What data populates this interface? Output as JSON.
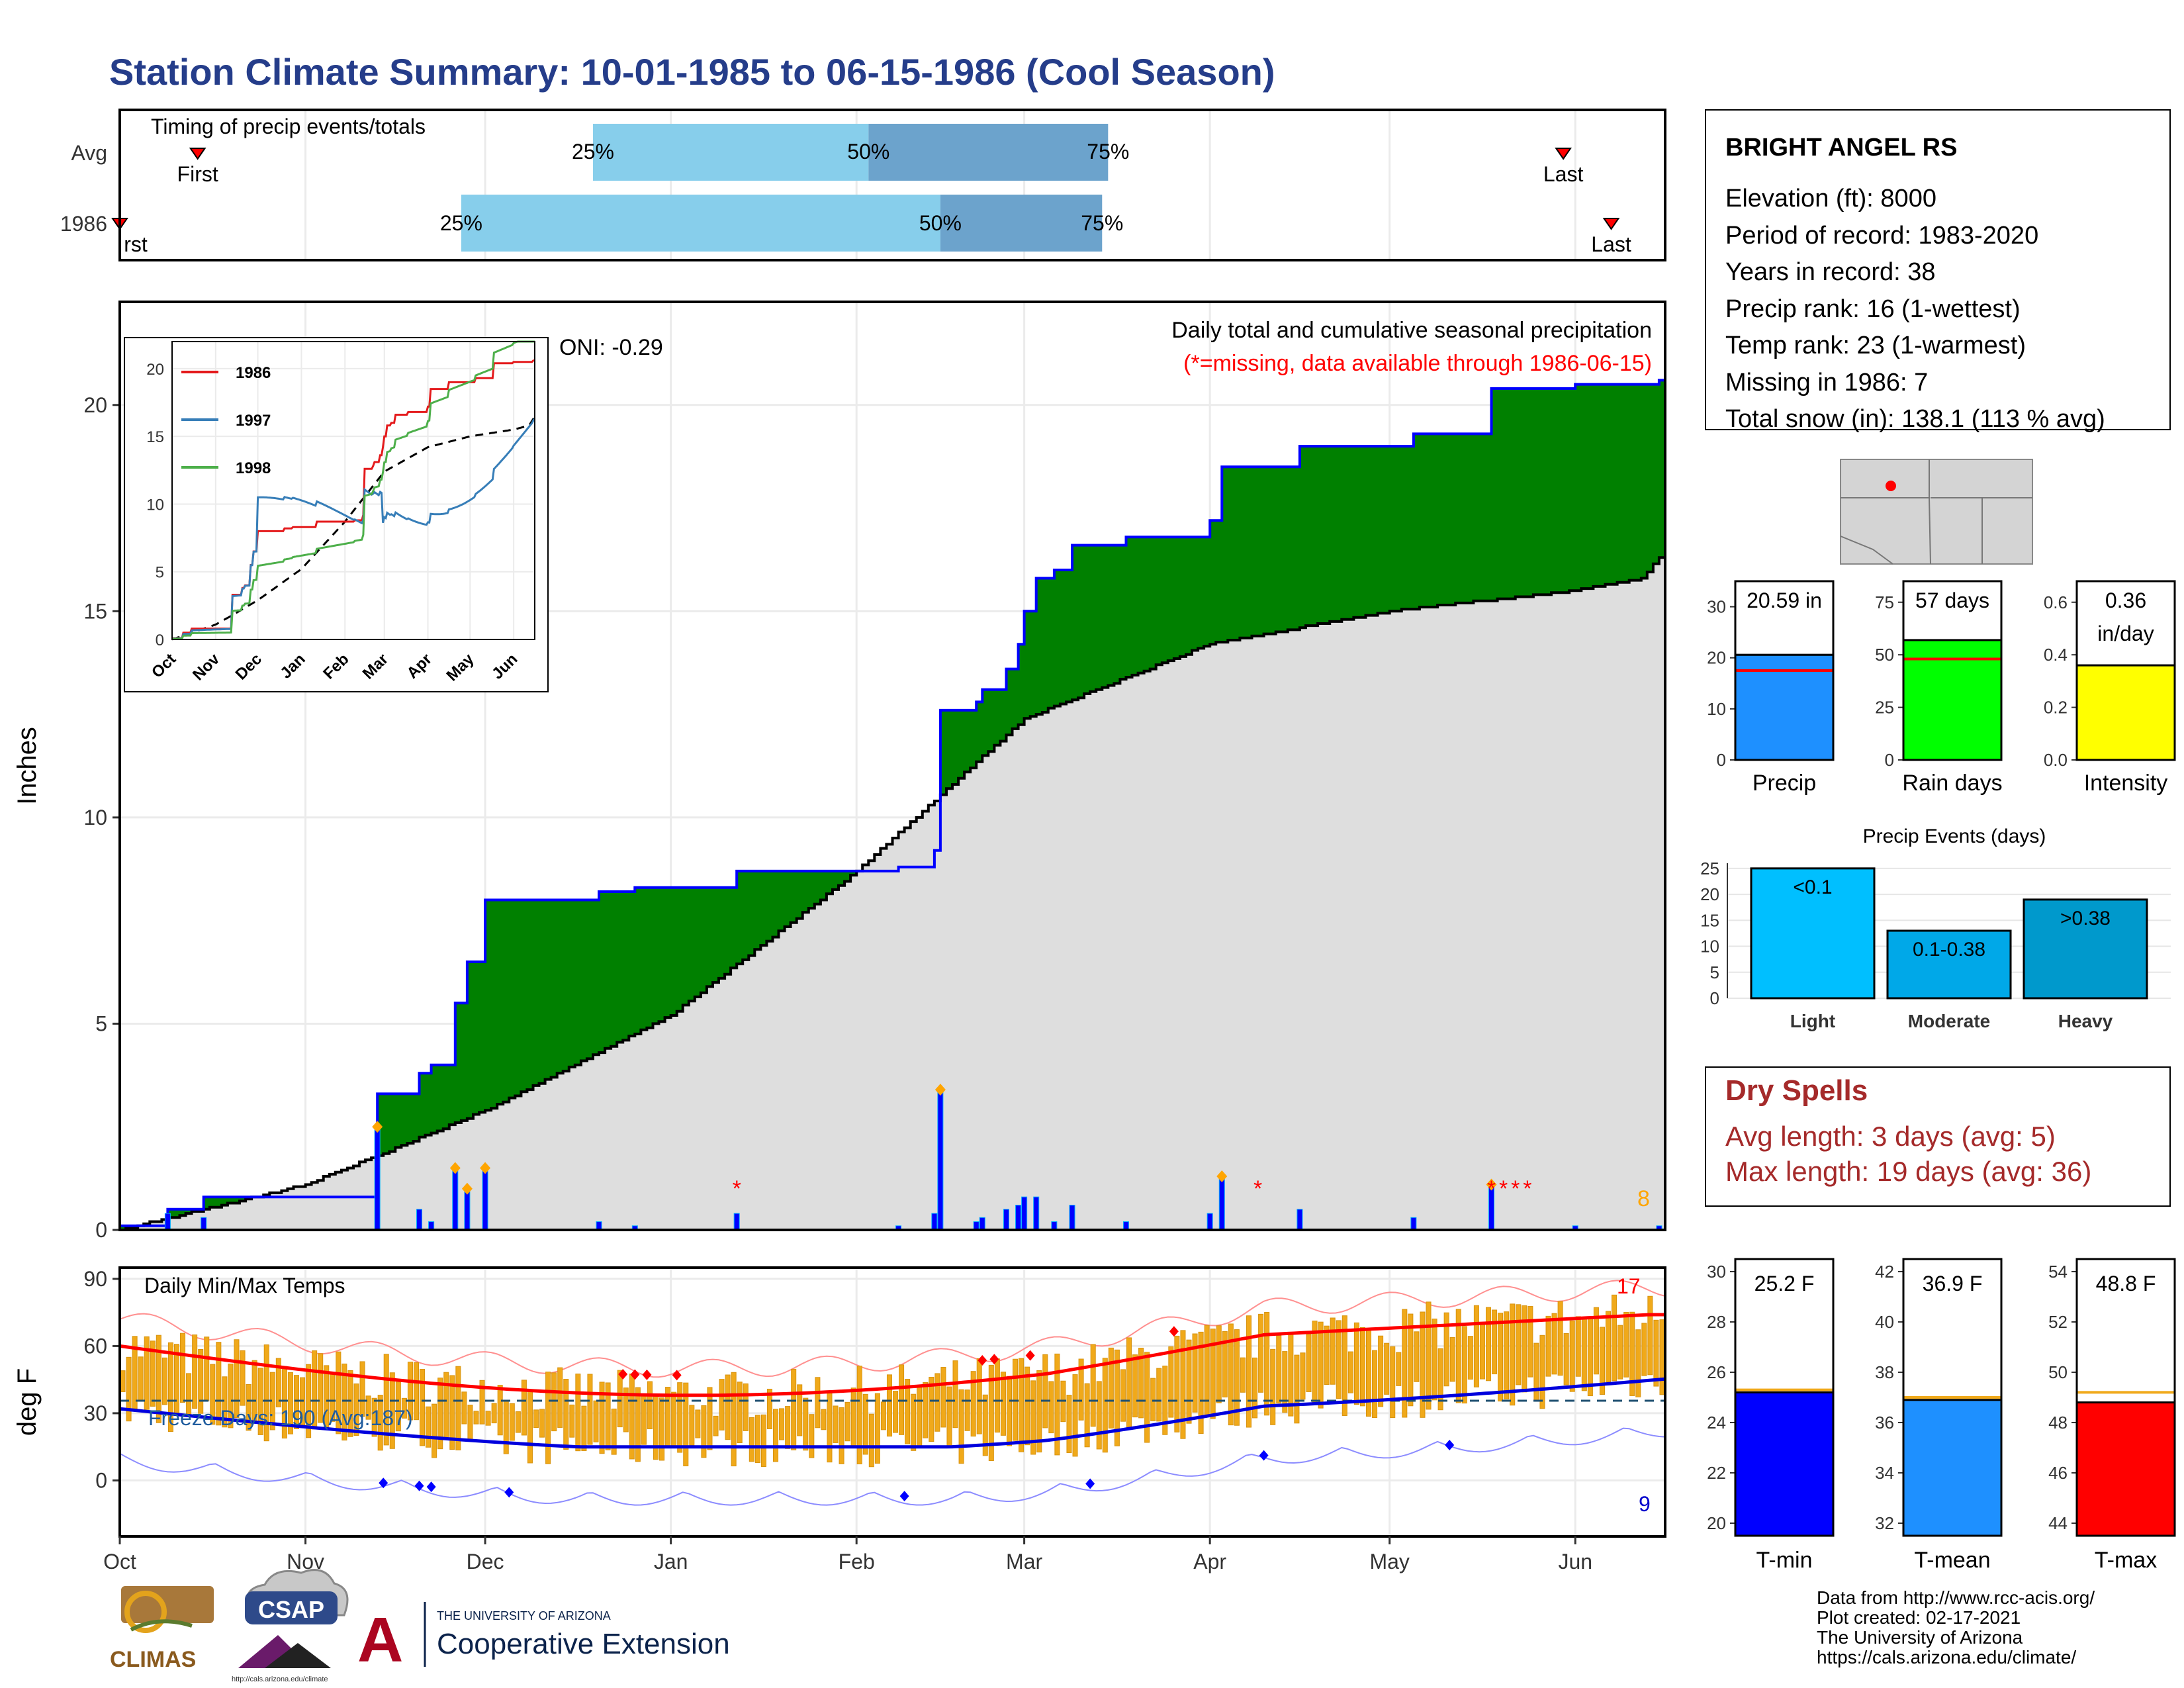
{
  "title": "Station Climate Summary: 10-01-1985 to 06-15-1986 (Cool Season)",
  "timing": {
    "label": "Timing of precip events/totals",
    "rows": [
      {
        "label": "Avg",
        "first_date": "1985-10-14",
        "last_date": "1986-05-30",
        "q25": "1985-12-19",
        "q50": "1986-02-03",
        "q75": "1986-03-15",
        "first_label": "First",
        "last_label": "Last"
      },
      {
        "label": "1986",
        "first_date": "1985-10-01",
        "last_date": "1986-06-07",
        "q25": "1985-11-27",
        "q50": "1986-02-15",
        "q75": "1986-03-14",
        "first_label": "rst",
        "last_label": "Last"
      }
    ],
    "pct_labels": [
      "25%",
      "50%",
      "75%"
    ]
  },
  "station": {
    "name": "BRIGHT ANGEL RS",
    "lines": [
      "Elevation (ft): 8000",
      "Period of record: 1983-2020",
      "Years in record: 38",
      "Precip rank: 16 (1-wettest)",
      "Temp rank: 23 (1-warmest)",
      "Missing in 1986: 7",
      "Total snow (in): 138.1 (113 % avg)"
    ]
  },
  "precip_panel": {
    "ylabel": "Inches",
    "annotation1": "Daily total and cumulative seasonal precipitation",
    "annotation2": "(*=missing, data available through 1986-06-15)",
    "oni": "ONI: -0.29",
    "count_label": "8",
    "yticks": [
      "0",
      "5",
      "10",
      "15",
      "20"
    ]
  },
  "temp_panel": {
    "ylabel": "deg F",
    "label": "Daily Min/Max Temps",
    "freeze": "Freeze Days: 190 (Avg:187)",
    "hi_count": "17",
    "lo_count": "9",
    "yticks": [
      "0",
      "30",
      "60",
      "90"
    ]
  },
  "month_labels": [
    "Oct",
    "Nov",
    "Dec",
    "Jan",
    "Feb",
    "Mar",
    "Apr",
    "May",
    "Jun"
  ],
  "inset_month_labels": [
    "Oct",
    "Nov",
    "Dec",
    "Jan",
    "Feb",
    "Mar",
    "Apr",
    "May",
    "Jun"
  ],
  "bar_values": {
    "precip": {
      "value_label": "20.59 in",
      "name": "Precip",
      "yticks": [
        "0",
        "10",
        "20",
        "30"
      ]
    },
    "rain": {
      "value_label": "57 days",
      "name": "Rain days",
      "yticks": [
        "0",
        "25",
        "50",
        "75"
      ]
    },
    "intensity": {
      "value_label": "0.36",
      "value_label2": "in/day",
      "name": "Intensity",
      "yticks": [
        "0.0",
        "0.2",
        "0.4",
        "0.6"
      ]
    }
  },
  "events": {
    "title": "Precip Events (days)",
    "yticks": [
      "0",
      "5",
      "10",
      "15",
      "20",
      "25"
    ]
  },
  "dry_spells": {
    "title": "Dry Spells",
    "avg": "Avg length: 3 days (avg: 5)",
    "max": "Max length: 19 days (avg: 36)"
  },
  "temp_bars": {
    "tmin": {
      "value_label": "25.2 F",
      "name": "T-min",
      "yticks": [
        "20",
        "22",
        "24",
        "26",
        "28",
        "30"
      ]
    },
    "tmean": {
      "value_label": "36.9 F",
      "name": "T-mean",
      "yticks": [
        "32",
        "34",
        "36",
        "38",
        "40",
        "42"
      ]
    },
    "tmax": {
      "value_label": "48.8 F",
      "name": "T-max",
      "yticks": [
        "44",
        "46",
        "48",
        "50",
        "52",
        "54"
      ]
    }
  },
  "logos": {
    "climas": "CLIMAS",
    "csap": "CSAP",
    "csap_url": "http://cals.arizona.edu/climate",
    "ua_small": "THE UNIVERSITY OF ARIZONA",
    "ua_big": "Cooperative Extension",
    "ua_letter": "A"
  },
  "credits": [
    "Data from http://www.rcc-acis.org/",
    "Plot created: 02-17-2021",
    "The University of Arizona",
    "https://cals.arizona.edu/climate/"
  ],
  "colors": {
    "title": "#253d8a",
    "green": "#008000",
    "brown": "#7f5200",
    "grey": "#dedede",
    "blue": "#0000ff",
    "orange": "#f0a91a",
    "red": "#ff0000",
    "q1": "#87ceeb",
    "q2": "#6ca3cc"
  },
  "chart_data": [
    {
      "type": "area",
      "title": "Daily total and cumulative seasonal precipitation",
      "ylabel": "Inches",
      "ylim": [
        0,
        22.5
      ],
      "series": [
        {
          "name": "1986",
          "x": [
            "1985-10-01",
            "1985-10-09",
            "1985-10-15",
            "1985-11-12",
            "1985-11-13",
            "1985-11-20",
            "1985-11-22",
            "1985-11-26",
            "1985-11-28",
            "1985-12-01",
            "1985-12-20",
            "1985-12-26",
            "1986-01-12",
            "1986-01-28",
            "1986-02-08",
            "1986-02-14",
            "1986-02-15",
            "1986-02-21",
            "1986-02-22",
            "1986-02-26",
            "1986-02-28",
            "1986-03-01",
            "1986-03-03",
            "1986-03-06",
            "1986-03-09",
            "1986-03-18",
            "1986-04-01",
            "1986-04-03",
            "1986-04-16",
            "1986-05-05",
            "1986-05-18",
            "1986-05-29",
            "1986-06-01",
            "1986-06-05",
            "1986-06-15"
          ],
          "y": [
            0.1,
            0.5,
            0.8,
            0.8,
            3.3,
            3.8,
            4.0,
            5.5,
            6.5,
            8.0,
            8.2,
            8.3,
            8.7,
            8.7,
            8.8,
            9.2,
            12.6,
            12.8,
            13.1,
            13.6,
            14.2,
            15.0,
            15.8,
            16.0,
            16.6,
            16.8,
            17.2,
            18.5,
            19.0,
            19.3,
            20.4,
            20.4,
            20.5,
            20.5,
            20.6
          ]
        },
        {
          "name": "Average",
          "x": [
            "1985-10-01",
            "1985-11-01",
            "1985-11-13",
            "1985-12-01",
            "1986-01-01",
            "1986-02-01",
            "1986-03-01",
            "1986-04-01",
            "1986-05-01",
            "1986-06-01",
            "1986-06-12",
            "1986-06-15"
          ],
          "y": [
            0.0,
            1.1,
            1.8,
            2.9,
            5.2,
            8.7,
            12.4,
            14.2,
            15.0,
            15.5,
            15.8,
            16.3
          ]
        }
      ]
    },
    {
      "type": "bar",
      "title": "Precip Events (days)",
      "categories": [
        "Light",
        "Moderate",
        "Heavy"
      ],
      "bar_labels": [
        "<0.1",
        "0.1-0.38",
        ">0.38"
      ],
      "values": [
        25,
        13,
        19
      ],
      "ylim": [
        0,
        26
      ]
    },
    {
      "type": "bar",
      "categories": [
        "Precip",
        "Rain days",
        "Intensity"
      ],
      "values": [
        20.59,
        57,
        0.36
      ],
      "averages": [
        17.5,
        48,
        0.37
      ],
      "ylims": [
        [
          0,
          35
        ],
        [
          0,
          85
        ],
        [
          0,
          0.68
        ]
      ]
    },
    {
      "type": "bar",
      "categories": [
        "T-min",
        "T-mean",
        "T-max"
      ],
      "values": [
        25.2,
        36.9,
        48.8
      ],
      "averages": [
        25.3,
        37.0,
        49.2
      ],
      "ylims": [
        [
          19.5,
          30.5
        ],
        [
          31.5,
          42.5
        ],
        [
          43.5,
          54.5
        ]
      ]
    }
  ]
}
